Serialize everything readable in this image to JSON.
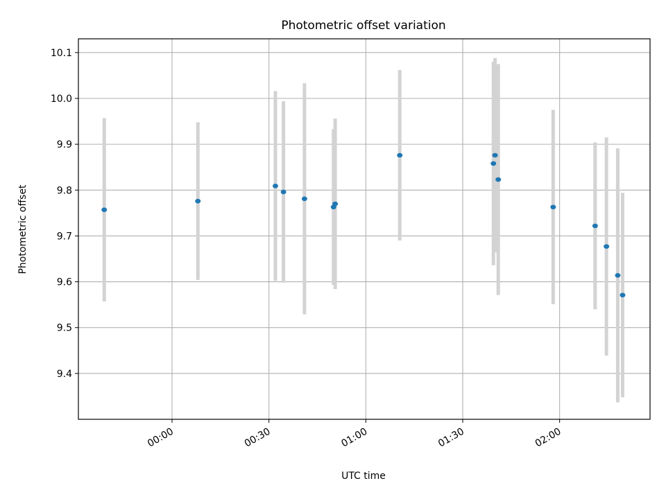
{
  "chart_data": {
    "type": "scatter",
    "title": "Photometric offset variation",
    "xlabel": "UTC time",
    "ylabel": "Photometric offset",
    "x_axis": "time",
    "xlim": [
      "-00:29:00",
      "02:28:00"
    ],
    "ylim": [
      9.3,
      10.13
    ],
    "x_ticks": [
      {
        "value": "00:00:00",
        "label": "00:00"
      },
      {
        "value": "00:30:00",
        "label": "00:30"
      },
      {
        "value": "01:00:00",
        "label": "01:00"
      },
      {
        "value": "01:30:00",
        "label": "01:30"
      },
      {
        "value": "02:00:00",
        "label": "02:00"
      }
    ],
    "y_ticks": [
      9.4,
      9.5,
      9.6,
      9.7,
      9.8,
      9.9,
      10.0,
      10.1
    ],
    "grid": true,
    "marker_color": "#1f77b4",
    "errorbar_color": "#d3d3d3",
    "points": [
      {
        "x": "-00:21:00",
        "y": 9.757,
        "err": 0.2
      },
      {
        "x": "00:08:00",
        "y": 9.776,
        "err": 0.172
      },
      {
        "x": "00:32:00",
        "y": 9.809,
        "err": 0.207
      },
      {
        "x": "00:34:30",
        "y": 9.796,
        "err": 0.198
      },
      {
        "x": "00:41:00",
        "y": 9.781,
        "err": 0.252
      },
      {
        "x": "00:50:00",
        "y": 9.763,
        "err": 0.17
      },
      {
        "x": "00:50:30",
        "y": 9.77,
        "err": 0.186
      },
      {
        "x": "01:10:30",
        "y": 9.876,
        "err": 0.186
      },
      {
        "x": "01:39:30",
        "y": 9.858,
        "err": 0.222
      },
      {
        "x": "01:40:00",
        "y": 9.876,
        "err": 0.212
      },
      {
        "x": "01:41:00",
        "y": 9.823,
        "err": 0.252
      },
      {
        "x": "01:58:00",
        "y": 9.763,
        "err": 0.212
      },
      {
        "x": "02:11:00",
        "y": 9.722,
        "err": 0.182
      },
      {
        "x": "02:14:30",
        "y": 9.677,
        "err": 0.238
      },
      {
        "x": "02:18:00",
        "y": 9.614,
        "err": 0.277
      },
      {
        "x": "02:19:30",
        "y": 9.571,
        "err": 0.223
      }
    ]
  }
}
